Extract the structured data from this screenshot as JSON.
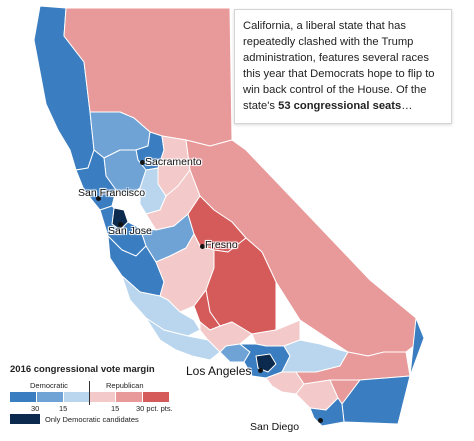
{
  "callout": {
    "text_before": "California, a liberal state that has repeatedly clashed with the Trump administration, features several races this year that Democrats hope to flip to win back control of the House. Of the state's ",
    "bold": "53 congressional seats",
    "text_after": "…"
  },
  "cities": {
    "sacramento": "Sacramento",
    "san_francisco": "San Francisco",
    "san_jose": "San Jose",
    "fresno": "Fresno",
    "los_angeles": "Los Angeles",
    "san_diego": "San Diego"
  },
  "legend": {
    "title": "2016 congressional vote margin",
    "democratic_label": "Democratic",
    "republican_label": "Republican",
    "ticks_dem": [
      "30",
      "15"
    ],
    "ticks_rep": [
      "15",
      "30 pct. pts."
    ],
    "only_dem_label": "Only Democratic candidates"
  },
  "colors": {
    "dem_strong": "#3a7dc0",
    "dem_mid": "#6fa3d6",
    "dem_light": "#b9d6ee",
    "rep_light": "#f3c9c9",
    "rep_mid": "#e89999",
    "rep_strong": "#d55a5a",
    "dem_only": "#0b2a4d"
  }
}
